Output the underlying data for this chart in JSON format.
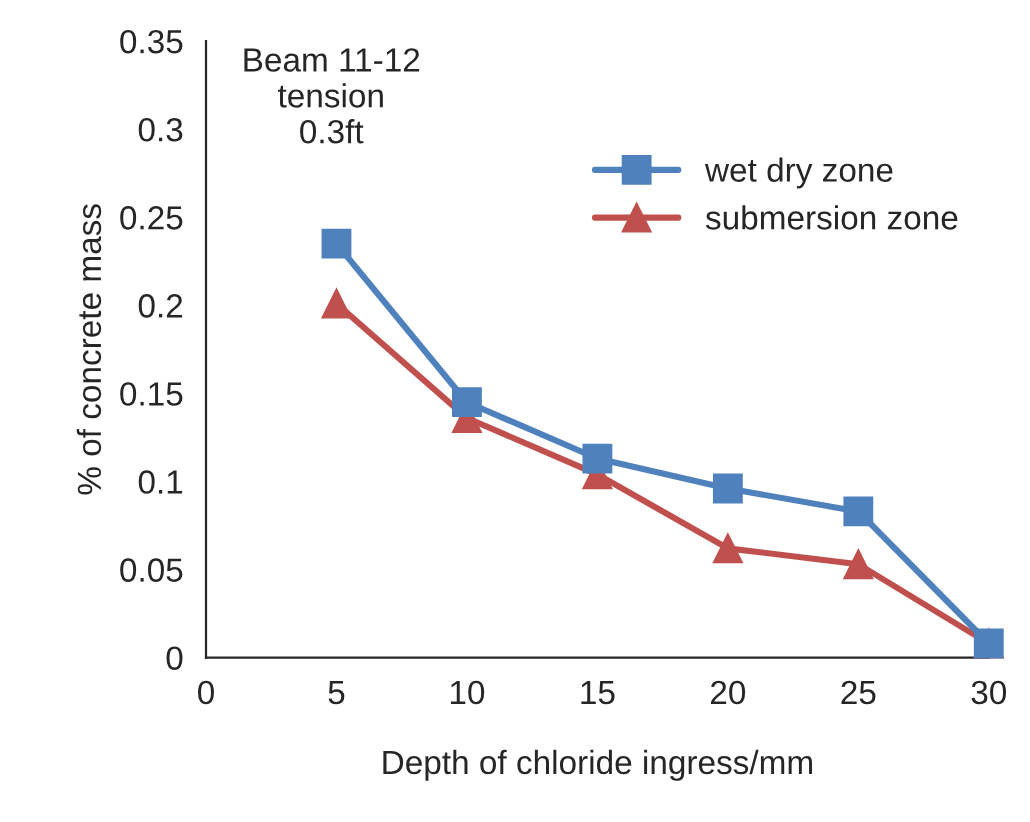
{
  "chart_data": {
    "type": "line",
    "xlabel": "Depth of chloride ingress/mm",
    "ylabel": "% of concrete mass",
    "annotations": [
      "Beam 11-12\ntension\n0.3ft"
    ],
    "x": [
      5,
      10,
      15,
      20,
      25,
      30
    ],
    "series": [
      {
        "name": "wet dry zone",
        "color": "#4f81bd",
        "marker": "square",
        "values": [
          0.235,
          0.145,
          0.113,
          0.096,
          0.083,
          0.008
        ]
      },
      {
        "name": "submersion zone",
        "color": "#c0504d",
        "marker": "triangle",
        "values": [
          0.201,
          0.136,
          0.104,
          0.062,
          0.053,
          0.008
        ]
      }
    ],
    "xlim": [
      0,
      30
    ],
    "xticks": [
      0,
      5,
      10,
      15,
      20,
      25,
      30
    ],
    "ylim": [
      0,
      0.35
    ],
    "yticks": [
      0,
      0.05,
      0.1,
      0.15,
      0.2,
      0.25,
      0.3,
      0.35
    ],
    "grid": false,
    "legend": "top right",
    "line_style": "solid"
  }
}
